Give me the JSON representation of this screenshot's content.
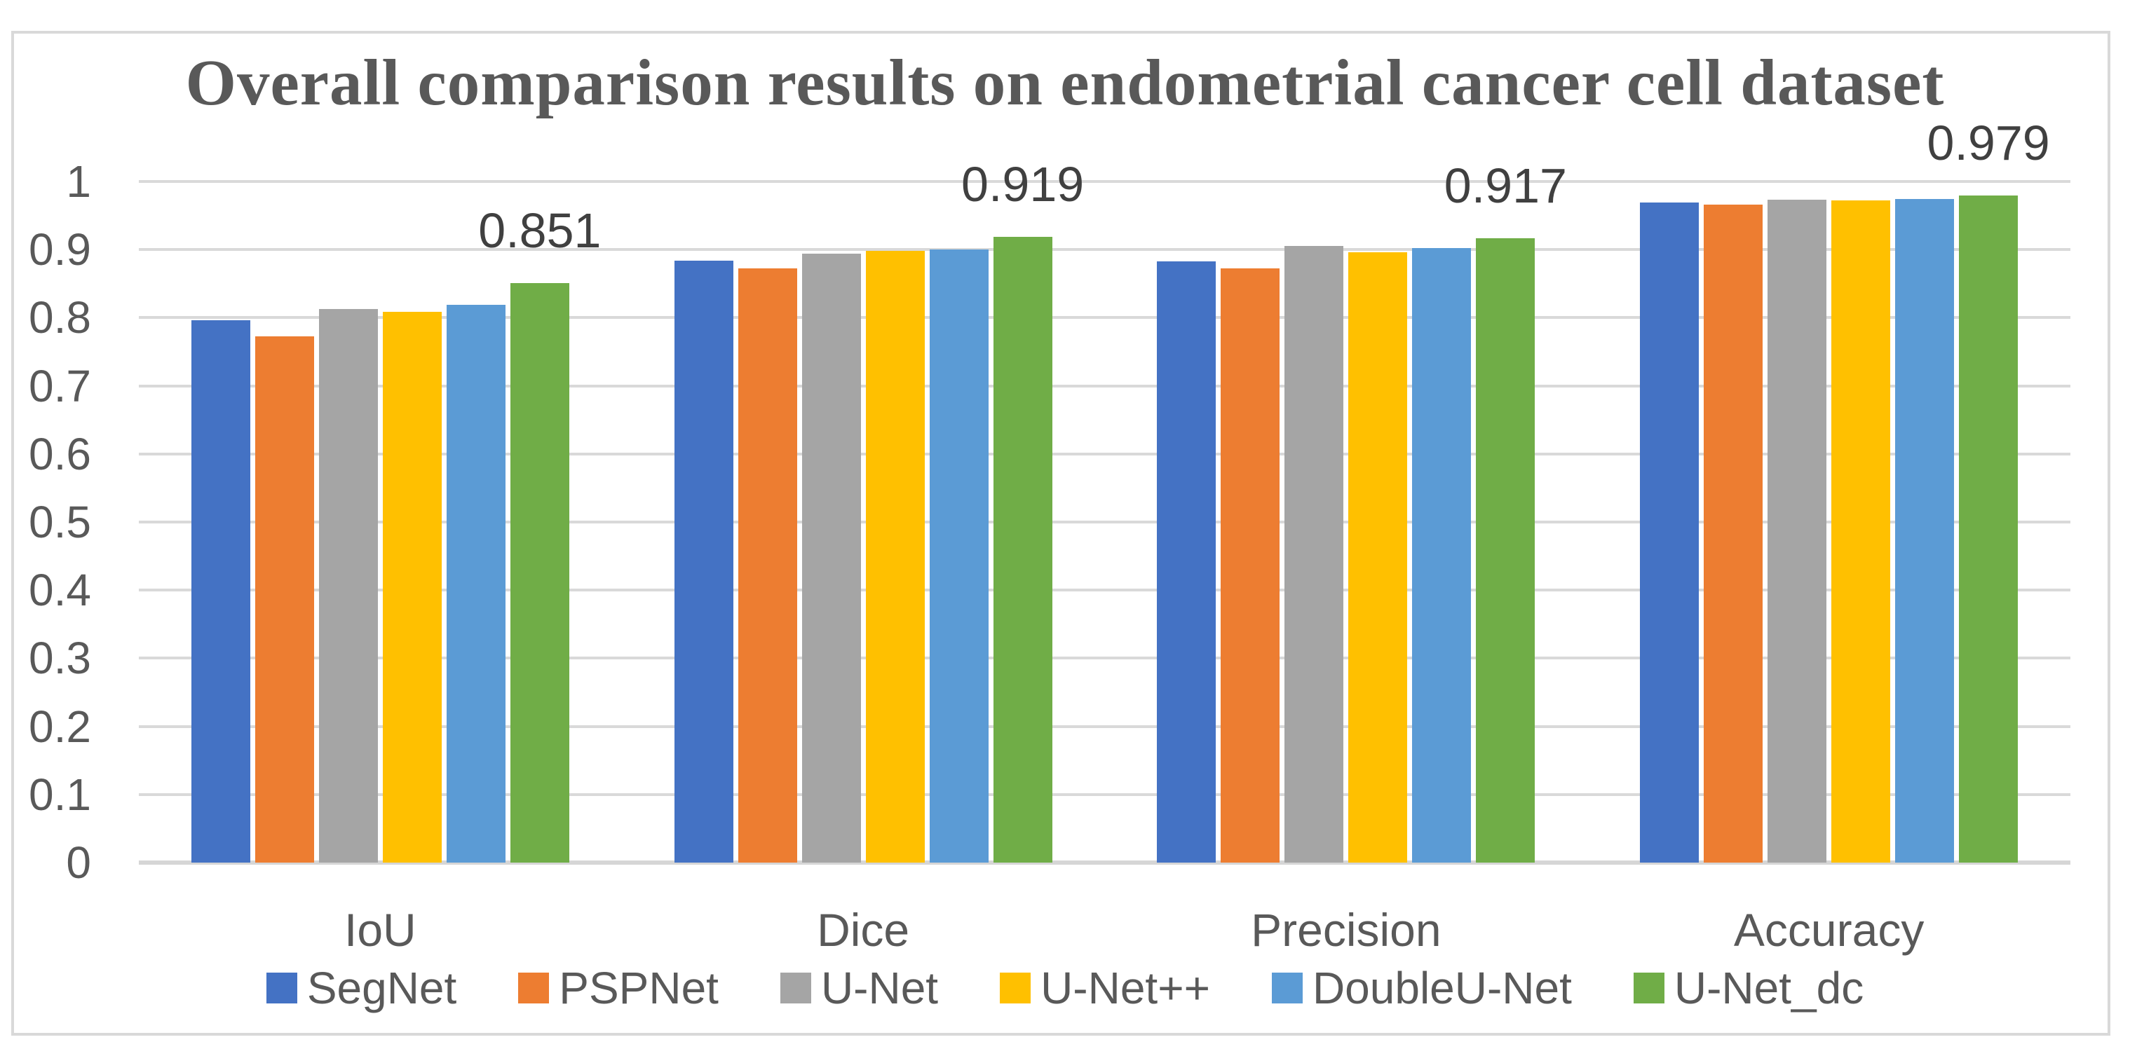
{
  "chart_data": {
    "type": "bar",
    "title": "Overall comparison results on endometrial cancer cell dataset",
    "categories": [
      "IoU",
      "Dice",
      "Precision",
      "Accuracy"
    ],
    "series": [
      {
        "name": "SegNet",
        "color": "#4472C4",
        "values": [
          0.796,
          0.884,
          0.883,
          0.969
        ]
      },
      {
        "name": "PSPNet",
        "color": "#ED7D31",
        "values": [
          0.773,
          0.872,
          0.872,
          0.966
        ]
      },
      {
        "name": "U-Net",
        "color": "#A5A5A5",
        "values": [
          0.813,
          0.894,
          0.905,
          0.973
        ]
      },
      {
        "name": "U-Net++",
        "color": "#FFC000",
        "values": [
          0.809,
          0.898,
          0.896,
          0.972
        ]
      },
      {
        "name": "DoubleU-Net",
        "color": "#5B9BD5",
        "values": [
          0.819,
          0.9,
          0.902,
          0.974
        ]
      },
      {
        "name": "U-Net_dc",
        "color": "#70AD47",
        "values": [
          0.851,
          0.919,
          0.917,
          0.979
        ]
      }
    ],
    "data_labels": [
      {
        "category": "IoU",
        "series": "U-Net_dc",
        "text": "0.851"
      },
      {
        "category": "Dice",
        "series": "U-Net_dc",
        "text": "0.919"
      },
      {
        "category": "Precision",
        "series": "U-Net_dc",
        "text": "0.917"
      },
      {
        "category": "Accuracy",
        "series": "U-Net_dc",
        "text": "0.979"
      }
    ],
    "y_axis": {
      "min": 0,
      "max": 1,
      "tick_step": 0.1,
      "tick_labels": [
        "0",
        "0.1",
        "0.2",
        "0.3",
        "0.4",
        "0.5",
        "0.6",
        "0.7",
        "0.8",
        "0.9",
        "1"
      ]
    },
    "grid": "horizontal-on",
    "legend_position": "bottom",
    "style_colors": {
      "title_text": "#595959",
      "axis_text": "#595959",
      "data_label_text": "#404040",
      "gridline": "#D9D9D9",
      "chart_border": "#D9D9D9",
      "background": "#FFFFFF"
    }
  }
}
